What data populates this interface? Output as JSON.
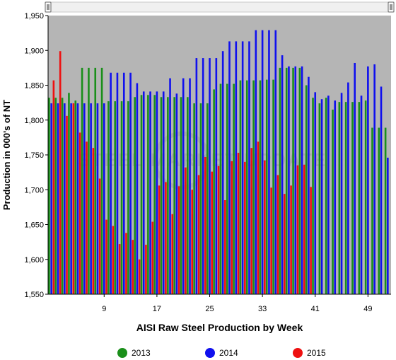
{
  "chart_data": {
    "type": "bar",
    "xlabel": "AISI Raw Steel Production by Week",
    "ylabel": "Production in 000's of NT",
    "ylim": [
      1550,
      1950
    ],
    "yticks": [
      1550,
      1600,
      1650,
      1700,
      1750,
      1800,
      1850,
      1900,
      1950
    ],
    "xticks": [
      9,
      17,
      25,
      33,
      41,
      49
    ],
    "weeks": [
      1,
      2,
      3,
      4,
      5,
      6,
      7,
      8,
      9,
      10,
      11,
      12,
      13,
      14,
      15,
      16,
      17,
      18,
      19,
      20,
      21,
      22,
      23,
      24,
      25,
      26,
      27,
      28,
      29,
      30,
      31,
      32,
      33,
      34,
      35,
      36,
      37,
      38,
      39,
      40,
      41,
      42,
      43,
      44,
      45,
      46,
      47,
      48,
      49,
      50,
      51,
      52
    ],
    "grid": false,
    "legend_position": "bottom",
    "watermark": "STEEL MARKET UPDATE",
    "series": [
      {
        "name": "2013",
        "color": "#1a8f1a",
        "values": [
          1832,
          1832,
          1832,
          1839,
          1828,
          1875,
          1875,
          1875,
          1875,
          1827,
          1827,
          1827,
          1827,
          1833,
          1836,
          1836,
          1836,
          1833,
          1833,
          1833,
          1833,
          1833,
          1824,
          1824,
          1824,
          1844,
          1852,
          1852,
          1852,
          1857,
          1857,
          1857,
          1857,
          1858,
          1858,
          1875,
          1875,
          1875,
          1875,
          1850,
          1832,
          1824,
          1832,
          1815,
          1826,
          1826,
          1826,
          1826,
          1828,
          1789,
          1789,
          1789
        ]
      },
      {
        "name": "2014",
        "color": "#1010ee",
        "values": [
          1824,
          1824,
          1824,
          1824,
          1824,
          1824,
          1824,
          1824,
          1824,
          1868,
          1868,
          1868,
          1868,
          1853,
          1841,
          1841,
          1841,
          1841,
          1860,
          1838,
          1860,
          1860,
          1889,
          1889,
          1889,
          1889,
          1899,
          1913,
          1913,
          1913,
          1913,
          1929,
          1929,
          1929,
          1929,
          1893,
          1877,
          1877,
          1877,
          1862,
          1840,
          1830,
          1835,
          1828,
          1839,
          1854,
          1882,
          1835,
          1877,
          1880,
          1848,
          1746
        ]
      },
      {
        "name": "2015",
        "color": "#ee1010",
        "values": [
          1857,
          1899,
          1806,
          1824,
          1782,
          1769,
          1760,
          1716,
          1657,
          1648,
          1622,
          1638,
          1628,
          1600,
          1621,
          1654,
          1706,
          1711,
          1665,
          1705,
          1732,
          1700,
          1721,
          1747,
          1726,
          1734,
          1685,
          1741,
          1753,
          1740,
          1760,
          1769,
          1742,
          1703,
          1721,
          1694,
          1706,
          1735,
          1736,
          1704
        ]
      }
    ]
  }
}
